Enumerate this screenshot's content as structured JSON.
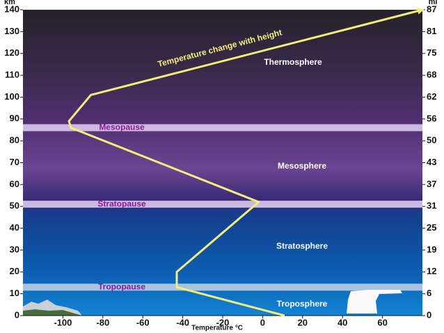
{
  "chart_data": {
    "type": "line",
    "x_label": "Temperature °C",
    "y_label": "km",
    "y2_label": "mi",
    "xlim": [
      -120,
      80
    ],
    "xticks": [
      -100,
      -80,
      -60,
      -40,
      -20,
      0,
      20,
      40,
      60
    ],
    "ylim": [
      0,
      140
    ],
    "yticks": [
      0,
      10,
      20,
      30,
      40,
      50,
      60,
      70,
      80,
      90,
      100,
      110,
      120,
      130,
      140
    ],
    "y2lim": [
      0,
      87
    ],
    "y2ticks": [
      0,
      {
        "value": 6.21,
        "label": "6"
      },
      {
        "value": 12.43,
        "label": "12"
      },
      {
        "value": 18.64,
        "label": "19"
      },
      {
        "value": 24.85,
        "label": "25"
      },
      {
        "value": 31.07,
        "label": "31"
      },
      {
        "value": 37.28,
        "label": "37"
      },
      {
        "value": 43.5,
        "label": "43"
      },
      {
        "value": 49.71,
        "label": "50"
      },
      {
        "value": 55.92,
        "label": "56"
      },
      {
        "value": 62.14,
        "label": "62"
      },
      {
        "value": 68.35,
        "label": "68"
      },
      {
        "value": 74.56,
        "label": "75"
      },
      {
        "value": 80.78,
        "label": "81"
      },
      87
    ],
    "grid": false,
    "series": [
      {
        "name": "Temperature change with height",
        "color": "#f4ee78",
        "x": [
          11,
          -43,
          -43,
          -2,
          -96,
          -97,
          -86,
          80
        ],
        "values": [
          0,
          13,
          20,
          52,
          86,
          89,
          101,
          140
        ]
      }
    ],
    "boundaries": [
      {
        "name": "Tropopause",
        "altitude": 13,
        "color": "#b9cde3"
      },
      {
        "name": "Stratopause",
        "altitude": 51,
        "color": "#dcc8ec"
      },
      {
        "name": "Mesopause",
        "altitude": 86,
        "color": "#dcc8ec"
      }
    ],
    "layers": [
      "Thermosphere",
      "Mesosphere",
      "Stratosphere",
      "Troposphere"
    ]
  }
}
